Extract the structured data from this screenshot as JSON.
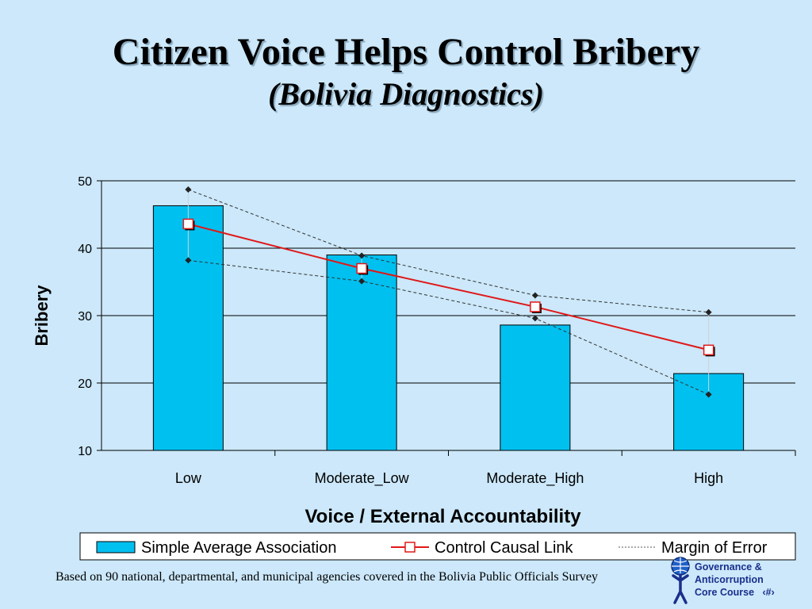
{
  "title": {
    "line1": "Citizen Voice Helps Control Bribery",
    "line2": "(Bolivia Diagnostics)"
  },
  "footnote": "Based on 90 national, departmental, and municipal agencies covered in the Bolivia Public Officials Survey",
  "logo": {
    "line1": "Governance &",
    "line2": "Anticorruption",
    "line3": "Core Course",
    "page": "‹#›",
    "icon": "globe-person-icon"
  },
  "chart_data": {
    "type": "bar",
    "ylabel": "Bribery",
    "xlabel": "Voice / External Accountability",
    "ylim": [
      10,
      50
    ],
    "yticks": [
      10,
      20,
      30,
      40,
      50
    ],
    "grid": true,
    "legend_position": "bottom",
    "categories": [
      "Low",
      "Moderate_Low",
      "Moderate_High",
      "High"
    ],
    "series": [
      {
        "name": "Simple Average Association",
        "type": "bar",
        "color": "#00c0f0",
        "values": [
          46.3,
          39.0,
          28.6,
          21.4
        ]
      },
      {
        "name": "Control Causal Link",
        "type": "line",
        "color": "#e01818",
        "values": [
          43.6,
          37.0,
          31.3,
          24.9
        ]
      },
      {
        "name": "Margin of Error",
        "type": "line-dashed",
        "color": "#333333",
        "upper": [
          48.7,
          38.9,
          33.0,
          30.5
        ],
        "lower": [
          38.2,
          35.1,
          29.6,
          18.3
        ]
      }
    ]
  }
}
